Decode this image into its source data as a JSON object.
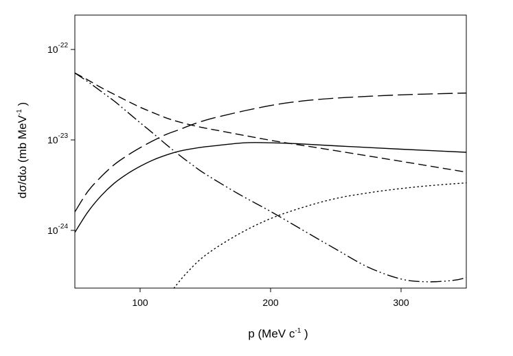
{
  "chart_data": {
    "type": "line",
    "xlabel": "p (MeV c",
    "xlabel_sup": "-1",
    "xlabel_end": " )",
    "ylabel": "dσ/dω (mb MeV",
    "ylabel_sup": "-1",
    "ylabel_end": " )",
    "xlim": [
      50,
      350
    ],
    "ylim": [
      2.3e-25,
      2.4e-22
    ],
    "yscale": "log",
    "grid": false,
    "legend": "none",
    "x_ticks": [
      {
        "value": 100,
        "label": "100"
      },
      {
        "value": 200,
        "label": "200"
      },
      {
        "value": 300,
        "label": "300"
      }
    ],
    "y_ticks": [
      {
        "value": 1e-22,
        "base": "10",
        "exp": "-22"
      },
      {
        "value": 1e-23,
        "base": "10",
        "exp": "-23"
      },
      {
        "value": 1e-24,
        "base": "10",
        "exp": "-24"
      }
    ],
    "series": [
      {
        "style": "solid",
        "x": [
          50,
          60,
          70,
          80,
          90,
          100,
          110,
          120,
          130,
          140,
          150,
          160,
          180,
          200,
          220,
          250,
          300,
          350
        ],
        "y": [
          9.5e-25,
          1.6e-24,
          2.4e-24,
          3.3e-24,
          4.2e-24,
          5.1e-24,
          6e-24,
          6.8e-24,
          7.5e-24,
          8e-24,
          8.4e-24,
          8.7e-24,
          9.3e-24,
          9.3e-24,
          9.1e-24,
          8.6e-24,
          7.9e-24,
          7.3e-24
        ]
      },
      {
        "style": "long-dash",
        "x": [
          50,
          60,
          70,
          80,
          90,
          100,
          110,
          120,
          130,
          140,
          150,
          160,
          180,
          200,
          220,
          250,
          300,
          350
        ],
        "y": [
          1.6e-24,
          2.7e-24,
          3.9e-24,
          5.3e-24,
          6.7e-24,
          8.2e-24,
          9.8e-24,
          1.15e-23,
          1.3e-23,
          1.48e-23,
          1.65e-23,
          1.8e-23,
          2.1e-23,
          2.4e-23,
          2.65e-23,
          2.9e-23,
          3.15e-23,
          3.3e-23
        ]
      },
      {
        "style": "short-dash",
        "x": [
          50,
          60,
          70,
          80,
          90,
          100,
          110,
          120,
          130,
          140,
          150,
          160,
          180,
          200,
          220,
          250,
          300,
          350
        ],
        "y": [
          5.5e-23,
          4.6e-23,
          3.8e-23,
          3.2e-23,
          2.7e-23,
          2.3e-23,
          2e-23,
          1.75e-23,
          1.58e-23,
          1.45e-23,
          1.35e-23,
          1.27e-23,
          1.12e-23,
          9.9e-24,
          8.9e-24,
          7.6e-24,
          5.8e-24,
          4.4e-24
        ]
      },
      {
        "style": "dash-dot-dot",
        "x": [
          50,
          60,
          70,
          80,
          90,
          100,
          110,
          120,
          130,
          140,
          150,
          175,
          200,
          225,
          250,
          275,
          300,
          320,
          340,
          350
        ],
        "y": [
          5.5e-23,
          4.4e-23,
          3.45e-23,
          2.7e-23,
          2.05e-23,
          1.55e-23,
          1.18e-23,
          8.9e-24,
          6.8e-24,
          5.3e-24,
          4.2e-24,
          2.55e-24,
          1.62e-24,
          1e-24,
          6.2e-25,
          3.9e-25,
          2.9e-25,
          2.7e-25,
          2.8e-25,
          3e-25
        ]
      },
      {
        "style": "dotted",
        "x": [
          126,
          135,
          150,
          175,
          200,
          225,
          250,
          275,
          300,
          325,
          350
        ],
        "y": [
          2.3e-25,
          3.3e-25,
          5.3e-25,
          9e-25,
          1.35e-24,
          1.8e-24,
          2.25e-24,
          2.6e-24,
          2.9e-24,
          3.15e-24,
          3.35e-24
        ]
      }
    ]
  }
}
